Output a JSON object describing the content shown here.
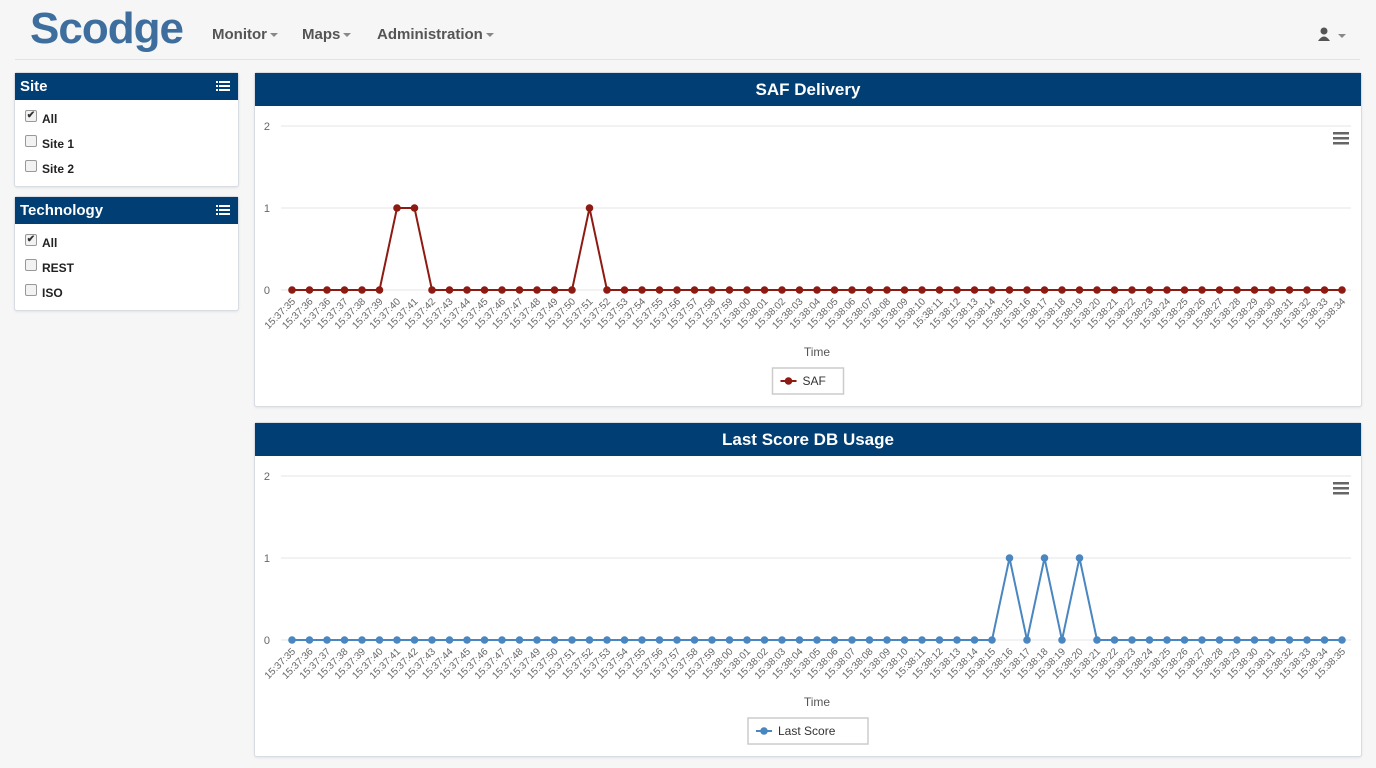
{
  "nav": {
    "brand": "Scodge",
    "menus": [
      "Monitor",
      "Maps",
      "Administration"
    ]
  },
  "filters": [
    {
      "title": "Site",
      "options": [
        {
          "label": "All",
          "checked": true
        },
        {
          "label": "Site 1",
          "checked": false
        },
        {
          "label": "Site 2",
          "checked": false
        }
      ]
    },
    {
      "title": "Technology",
      "options": [
        {
          "label": "All",
          "checked": true
        },
        {
          "label": "REST",
          "checked": false
        },
        {
          "label": "ISO",
          "checked": false
        }
      ]
    }
  ],
  "chart_data": [
    {
      "type": "line",
      "title": "SAF Delivery",
      "x_label": "Time",
      "categories": [
        "15:37:35",
        "15:37:36",
        "15:37:36",
        "15:37:37",
        "15:37:38",
        "15:37:39",
        "15:37:40",
        "15:37:41",
        "15:37:42",
        "15:37:43",
        "15:37:44",
        "15:37:45",
        "15:37:46",
        "15:37:47",
        "15:37:48",
        "15:37:49",
        "15:37:50",
        "15:37:51",
        "15:37:52",
        "15:37:53",
        "15:37:54",
        "15:37:55",
        "15:37:56",
        "15:37:57",
        "15:37:58",
        "15:37:59",
        "15:38:00",
        "15:38:01",
        "15:38:02",
        "15:38:03",
        "15:38:04",
        "15:38:05",
        "15:38:06",
        "15:38:07",
        "15:38:08",
        "15:38:09",
        "15:38:10",
        "15:38:11",
        "15:38:12",
        "15:38:13",
        "15:38:14",
        "15:38:15",
        "15:38:16",
        "15:38:17",
        "15:38:18",
        "15:38:19",
        "15:38:20",
        "15:38:21",
        "15:38:22",
        "15:38:23",
        "15:38:24",
        "15:38:25",
        "15:38:26",
        "15:38:27",
        "15:38:28",
        "15:38:29",
        "15:38:30",
        "15:38:31",
        "15:38:32",
        "15:38:33",
        "15:38:34"
      ],
      "series": [
        {
          "name": "SAF",
          "color": "#8e1b12",
          "values": [
            0,
            0,
            0,
            0,
            0,
            0,
            1,
            1,
            0,
            0,
            0,
            0,
            0,
            0,
            0,
            0,
            0,
            1,
            0,
            0,
            0,
            0,
            0,
            0,
            0,
            0,
            0,
            0,
            0,
            0,
            0,
            0,
            0,
            0,
            0,
            0,
            0,
            0,
            0,
            0,
            0,
            0,
            0,
            0,
            0,
            0,
            0,
            0,
            0,
            0,
            0,
            0,
            0,
            0,
            0,
            0,
            0,
            0,
            0,
            0,
            0
          ]
        }
      ],
      "ylim": [
        0,
        2
      ],
      "yticks": [
        0,
        1,
        2
      ],
      "grid": true
    },
    {
      "type": "line",
      "title": "Last Score DB Usage",
      "x_label": "Time",
      "categories": [
        "15:37:35",
        "15:37:36",
        "15:37:37",
        "15:37:38",
        "15:37:39",
        "15:37:40",
        "15:37:41",
        "15:37:42",
        "15:37:43",
        "15:37:44",
        "15:37:45",
        "15:37:46",
        "15:37:47",
        "15:37:48",
        "15:37:49",
        "15:37:50",
        "15:37:51",
        "15:37:52",
        "15:37:53",
        "15:37:54",
        "15:37:55",
        "15:37:56",
        "15:37:57",
        "15:37:58",
        "15:37:59",
        "15:38:00",
        "15:38:01",
        "15:38:02",
        "15:38:03",
        "15:38:04",
        "15:38:05",
        "15:38:06",
        "15:38:07",
        "15:38:08",
        "15:38:09",
        "15:38:10",
        "15:38:11",
        "15:38:12",
        "15:38:13",
        "15:38:14",
        "15:38:15",
        "15:38:16",
        "15:38:17",
        "15:38:18",
        "15:38:19",
        "15:38:20",
        "15:38:21",
        "15:38:22",
        "15:38:23",
        "15:38:24",
        "15:38:25",
        "15:38:26",
        "15:38:27",
        "15:38:28",
        "15:38:29",
        "15:38:30",
        "15:38:31",
        "15:38:32",
        "15:38:33",
        "15:38:34",
        "15:38:35"
      ],
      "series": [
        {
          "name": "Last Score",
          "color": "#4a86c0",
          "values": [
            0,
            0,
            0,
            0,
            0,
            0,
            0,
            0,
            0,
            0,
            0,
            0,
            0,
            0,
            0,
            0,
            0,
            0,
            0,
            0,
            0,
            0,
            0,
            0,
            0,
            0,
            0,
            0,
            0,
            0,
            0,
            0,
            0,
            0,
            0,
            0,
            0,
            0,
            0,
            0,
            0,
            1,
            0,
            1,
            0,
            1,
            0,
            0,
            0,
            0,
            0,
            0,
            0,
            0,
            0,
            0,
            0,
            0,
            0,
            0,
            0
          ]
        }
      ],
      "ylim": [
        0,
        2
      ],
      "yticks": [
        0,
        1,
        2
      ],
      "grid": true
    }
  ]
}
